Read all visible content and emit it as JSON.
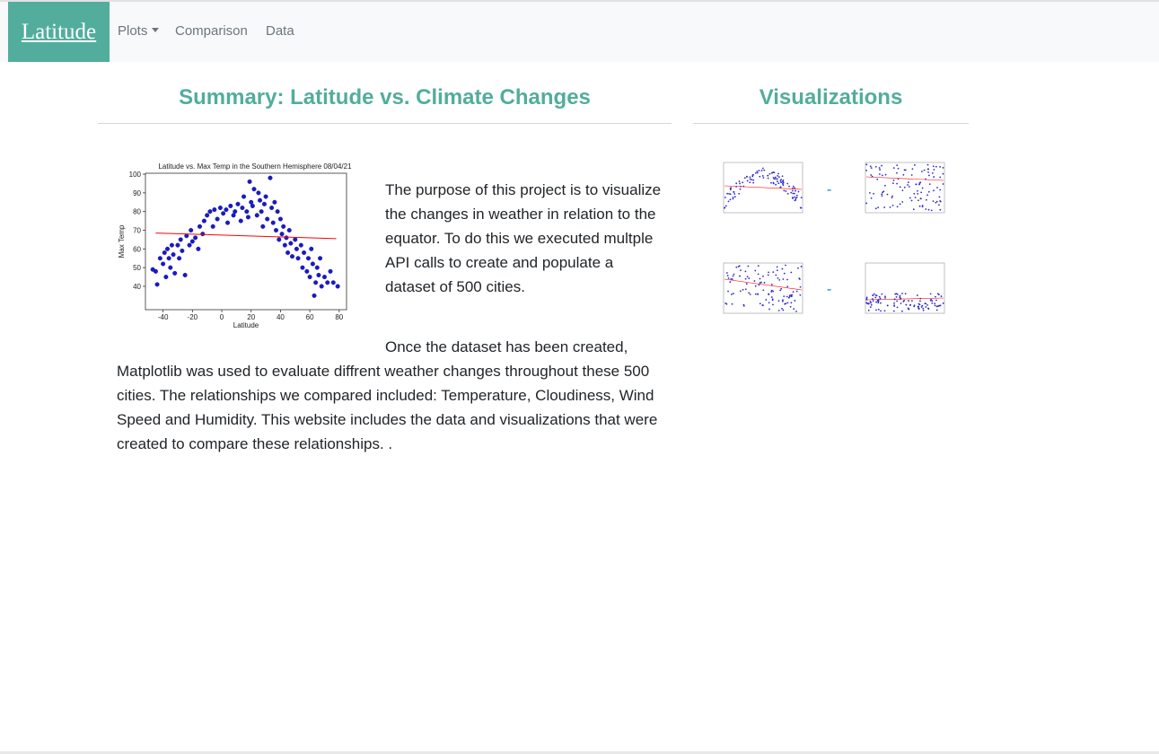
{
  "navbar": {
    "brand": "Latitude",
    "links": [
      "Plots",
      "Comparison",
      "Data"
    ]
  },
  "summary": {
    "heading": "Summary: Latitude vs. Climate Changes",
    "paragraphs": [
      "The purpose of this project is to visualize the changes in weather in relation to the equator. To do this we executed multple API calls to create and populate a dataset of 500 cities.",
      "Once the dataset has been created, Matplotlib was used to evaluate diffrent weather changes throughout these 500 cities. The relationships we compared included: Temperature, Cloudiness, Wind Speed and Humidity. This website includes the data and visualizations that were created to compare these relationships. ."
    ],
    "figure": {
      "type": "scatter",
      "title": "Latitude vs. Max Temp in the Southern Hemisphere 08/04/21",
      "xlabel": "Latitude",
      "ylabel": "Max Temp",
      "xlim": [
        -52,
        85
      ],
      "ylim": [
        27.5,
        100.5
      ],
      "xticks": [
        -40,
        -20,
        0,
        20,
        40,
        60,
        80
      ],
      "yticks": [
        40,
        50,
        60,
        70,
        80,
        90,
        100
      ],
      "color": "#1a1acc",
      "trend_color": "#ff0000",
      "x": [
        -47,
        -45,
        -44,
        -42,
        -40,
        -39,
        -38,
        -37,
        -36,
        -35,
        -34,
        -33,
        -32,
        -30,
        -29,
        -28,
        -27,
        -25,
        -24,
        -22,
        -21,
        -20,
        -18,
        -16,
        -15,
        -13,
        -12,
        -10,
        -8,
        -6,
        -5,
        -3,
        -1,
        1,
        3,
        4,
        6,
        8,
        9,
        11,
        13,
        14,
        15,
        17,
        18,
        19,
        20,
        21,
        22,
        24,
        25,
        26,
        27,
        28,
        29,
        30,
        31,
        33,
        34,
        35,
        36,
        37,
        38,
        39,
        40,
        41,
        42,
        43,
        44,
        45,
        46,
        47,
        48,
        50,
        51,
        52,
        54,
        55,
        56,
        58,
        59,
        60,
        61,
        62,
        63,
        64,
        65,
        66,
        67,
        68,
        70,
        72,
        74,
        76,
        79
      ],
      "y": [
        49,
        48,
        41,
        55,
        52,
        58,
        45,
        60,
        55,
        50,
        62,
        57,
        47,
        62,
        55,
        65,
        59,
        46,
        67,
        62,
        70,
        64,
        66,
        60,
        72,
        68,
        75,
        78,
        80,
        72,
        81,
        76,
        82,
        79,
        81,
        74,
        83,
        78,
        80,
        84,
        75,
        82,
        88,
        80,
        77,
        96,
        85,
        83,
        92,
        78,
        90,
        86,
        80,
        72,
        84,
        88,
        76,
        98,
        82,
        74,
        85,
        70,
        80,
        65,
        76,
        68,
        72,
        62,
        66,
        58,
        70,
        63,
        56,
        65,
        60,
        55,
        62,
        50,
        58,
        48,
        55,
        45,
        60,
        52,
        35,
        42,
        50,
        46,
        55,
        40,
        45,
        42,
        48,
        42,
        40
      ],
      "trend": {
        "x": [
          -45,
          78
        ],
        "y": [
          68.5,
          65.5
        ]
      }
    }
  },
  "visualizations": {
    "heading": "Visualizations",
    "separator": "-"
  }
}
